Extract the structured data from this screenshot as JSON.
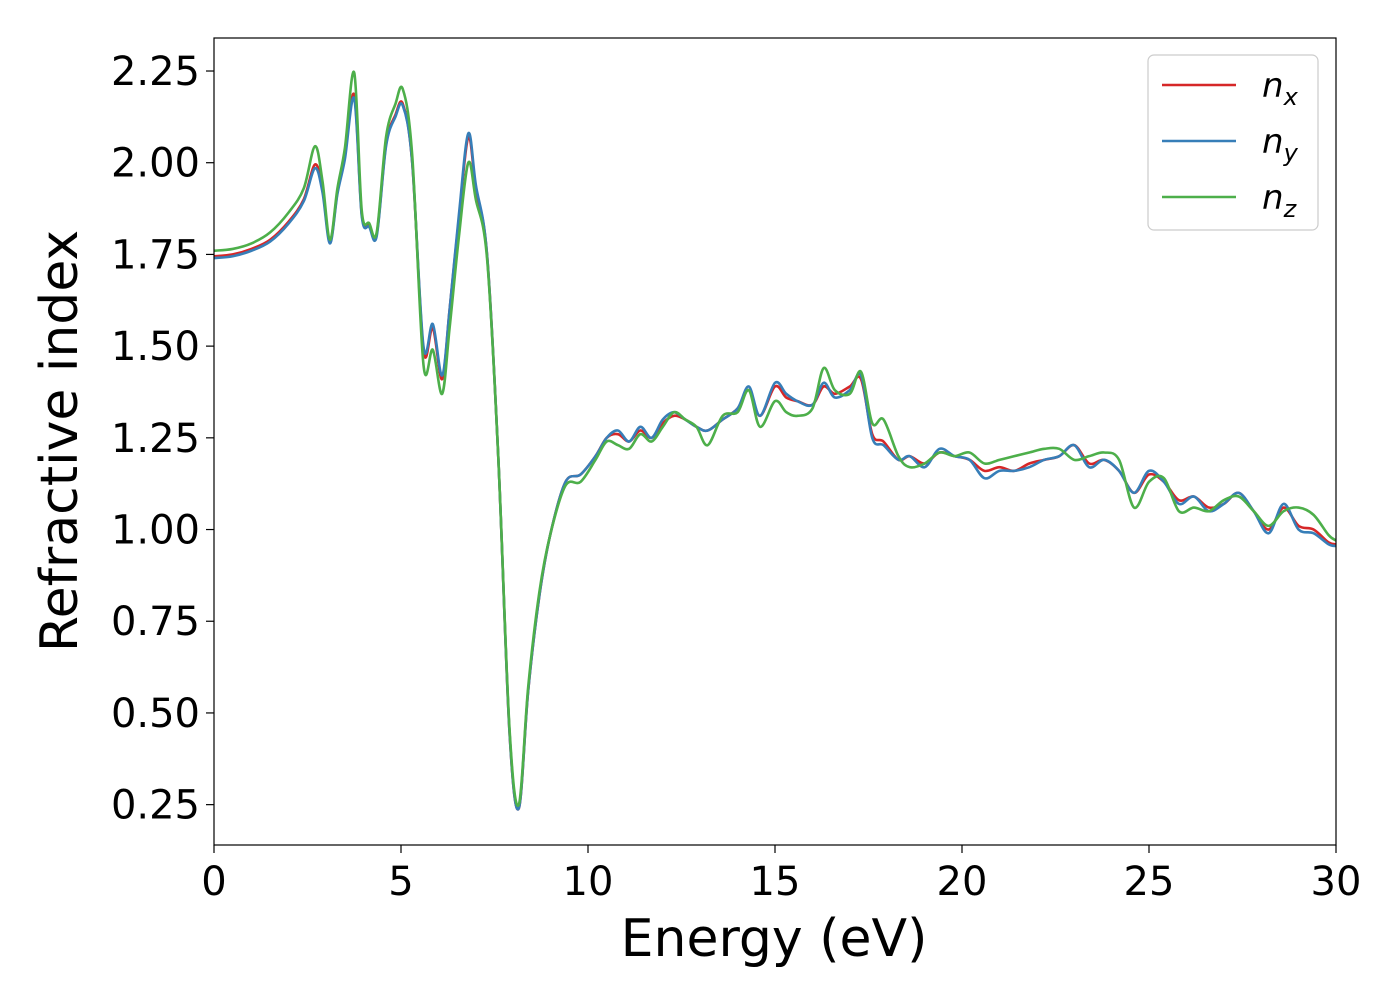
{
  "chart_data": {
    "type": "line",
    "title": "",
    "xlabel": "Energy (eV)",
    "ylabel": "Refractive index",
    "xlim": [
      0,
      30
    ],
    "ylim": [
      0.14,
      2.34
    ],
    "xticks": [
      0,
      5,
      10,
      15,
      20,
      25,
      30
    ],
    "xtick_labels": [
      "0",
      "5",
      "10",
      "15",
      "20",
      "25",
      "30"
    ],
    "yticks": [
      0.25,
      0.5,
      0.75,
      1.0,
      1.25,
      1.5,
      1.75,
      2.0,
      2.25
    ],
    "ytick_labels": [
      "0.25",
      "0.50",
      "0.75",
      "1.00",
      "1.25",
      "1.50",
      "1.75",
      "2.00",
      "2.25"
    ],
    "grid": false,
    "legend_position": "top-right",
    "series": [
      {
        "name": "n_x",
        "legend_base": "n",
        "legend_sub": "x",
        "color": "#d62728",
        "x": [
          0,
          0.5,
          1.0,
          1.5,
          2.0,
          2.4,
          2.7,
          2.9,
          3.1,
          3.3,
          3.5,
          3.75,
          3.95,
          4.15,
          4.35,
          4.6,
          4.85,
          5.05,
          5.3,
          5.6,
          5.85,
          6.1,
          6.3,
          6.55,
          6.8,
          7.0,
          7.3,
          7.6,
          7.9,
          8.15,
          8.4,
          8.7,
          9.0,
          9.4,
          9.8,
          10.2,
          10.5,
          10.8,
          11.1,
          11.4,
          11.7,
          12.0,
          12.3,
          12.6,
          12.9,
          13.2,
          13.6,
          14.0,
          14.3,
          14.6,
          15.0,
          15.3,
          15.6,
          16.0,
          16.3,
          16.6,
          17.0,
          17.3,
          17.6,
          17.9,
          18.3,
          18.6,
          19.0,
          19.4,
          19.8,
          20.2,
          20.6,
          21.0,
          21.4,
          21.8,
          22.2,
          22.6,
          23.0,
          23.4,
          23.8,
          24.2,
          24.6,
          25.0,
          25.4,
          25.8,
          26.2,
          26.6,
          27.0,
          27.4,
          27.8,
          28.2,
          28.6,
          29.0,
          29.4,
          29.8,
          30.0
        ],
        "values": [
          1.745,
          1.75,
          1.765,
          1.79,
          1.84,
          1.9,
          1.995,
          1.93,
          1.785,
          1.92,
          2.02,
          2.185,
          1.86,
          1.83,
          1.805,
          2.05,
          2.13,
          2.16,
          2.0,
          1.49,
          1.55,
          1.41,
          1.6,
          1.85,
          2.07,
          1.93,
          1.75,
          1.2,
          0.45,
          0.24,
          0.56,
          0.82,
          0.99,
          1.13,
          1.15,
          1.2,
          1.25,
          1.26,
          1.24,
          1.27,
          1.25,
          1.29,
          1.31,
          1.3,
          1.28,
          1.27,
          1.3,
          1.33,
          1.38,
          1.31,
          1.39,
          1.36,
          1.35,
          1.34,
          1.39,
          1.37,
          1.39,
          1.41,
          1.26,
          1.24,
          1.19,
          1.2,
          1.18,
          1.21,
          1.2,
          1.19,
          1.16,
          1.17,
          1.16,
          1.18,
          1.19,
          1.2,
          1.23,
          1.18,
          1.19,
          1.16,
          1.1,
          1.15,
          1.13,
          1.08,
          1.09,
          1.06,
          1.07,
          1.1,
          1.05,
          1.0,
          1.06,
          1.01,
          1.0,
          0.965,
          0.96
        ]
      },
      {
        "name": "n_y",
        "legend_base": "n",
        "legend_sub": "y",
        "color": "#377eb8",
        "x": [
          0,
          0.5,
          1.0,
          1.5,
          2.0,
          2.4,
          2.7,
          2.9,
          3.1,
          3.3,
          3.5,
          3.75,
          3.95,
          4.15,
          4.35,
          4.6,
          4.85,
          5.05,
          5.3,
          5.6,
          5.85,
          6.1,
          6.3,
          6.55,
          6.8,
          7.0,
          7.3,
          7.6,
          7.9,
          8.15,
          8.4,
          8.7,
          9.0,
          9.4,
          9.8,
          10.2,
          10.5,
          10.8,
          11.1,
          11.4,
          11.7,
          12.0,
          12.3,
          12.6,
          12.9,
          13.2,
          13.6,
          14.0,
          14.3,
          14.6,
          15.0,
          15.3,
          15.6,
          16.0,
          16.3,
          16.6,
          17.0,
          17.3,
          17.6,
          17.9,
          18.3,
          18.6,
          19.0,
          19.4,
          19.8,
          20.2,
          20.6,
          21.0,
          21.4,
          21.8,
          22.2,
          22.6,
          23.0,
          23.4,
          23.8,
          24.2,
          24.6,
          25.0,
          25.4,
          25.8,
          26.2,
          26.6,
          27.0,
          27.4,
          27.8,
          28.2,
          28.6,
          29.0,
          29.4,
          29.8,
          30.0
        ],
        "values": [
          1.74,
          1.745,
          1.76,
          1.785,
          1.835,
          1.895,
          1.985,
          1.92,
          1.78,
          1.915,
          2.01,
          2.175,
          1.855,
          1.825,
          1.8,
          2.045,
          2.125,
          2.155,
          2.0,
          1.5,
          1.56,
          1.42,
          1.6,
          1.86,
          2.08,
          1.94,
          1.75,
          1.2,
          0.45,
          0.24,
          0.56,
          0.82,
          0.99,
          1.13,
          1.15,
          1.2,
          1.25,
          1.27,
          1.24,
          1.28,
          1.25,
          1.3,
          1.32,
          1.3,
          1.28,
          1.27,
          1.3,
          1.33,
          1.39,
          1.31,
          1.4,
          1.37,
          1.35,
          1.34,
          1.4,
          1.36,
          1.38,
          1.42,
          1.25,
          1.23,
          1.19,
          1.2,
          1.17,
          1.22,
          1.2,
          1.19,
          1.14,
          1.16,
          1.16,
          1.17,
          1.19,
          1.2,
          1.23,
          1.17,
          1.19,
          1.16,
          1.1,
          1.16,
          1.13,
          1.07,
          1.09,
          1.05,
          1.07,
          1.1,
          1.05,
          0.99,
          1.07,
          1.0,
          0.99,
          0.96,
          0.955
        ]
      },
      {
        "name": "n_z",
        "legend_base": "n",
        "legend_sub": "z",
        "color": "#4daf4a",
        "x": [
          0,
          0.5,
          1.0,
          1.5,
          2.0,
          2.4,
          2.7,
          2.9,
          3.1,
          3.3,
          3.5,
          3.75,
          3.95,
          4.15,
          4.35,
          4.6,
          4.85,
          5.05,
          5.3,
          5.6,
          5.85,
          6.1,
          6.3,
          6.55,
          6.8,
          7.0,
          7.3,
          7.6,
          7.9,
          8.15,
          8.4,
          8.7,
          9.0,
          9.4,
          9.8,
          10.2,
          10.5,
          10.8,
          11.1,
          11.4,
          11.7,
          12.0,
          12.3,
          12.6,
          12.9,
          13.2,
          13.6,
          14.0,
          14.3,
          14.6,
          15.0,
          15.3,
          15.6,
          16.0,
          16.3,
          16.6,
          17.0,
          17.3,
          17.6,
          17.9,
          18.3,
          18.6,
          19.0,
          19.4,
          19.8,
          20.2,
          20.6,
          21.0,
          21.4,
          21.8,
          22.2,
          22.6,
          23.0,
          23.4,
          23.8,
          24.2,
          24.6,
          25.0,
          25.4,
          25.8,
          26.2,
          26.6,
          27.0,
          27.4,
          27.8,
          28.2,
          28.6,
          29.0,
          29.4,
          29.8,
          30.0
        ],
        "values": [
          1.76,
          1.765,
          1.78,
          1.81,
          1.865,
          1.93,
          2.045,
          1.95,
          1.79,
          1.93,
          2.04,
          2.245,
          1.87,
          1.835,
          1.81,
          2.07,
          2.16,
          2.2,
          2.02,
          1.45,
          1.49,
          1.37,
          1.55,
          1.8,
          2.0,
          1.9,
          1.74,
          1.2,
          0.46,
          0.25,
          0.57,
          0.83,
          0.99,
          1.12,
          1.13,
          1.19,
          1.24,
          1.23,
          1.22,
          1.26,
          1.24,
          1.28,
          1.32,
          1.3,
          1.28,
          1.23,
          1.31,
          1.32,
          1.38,
          1.28,
          1.35,
          1.32,
          1.31,
          1.33,
          1.44,
          1.38,
          1.37,
          1.43,
          1.29,
          1.3,
          1.2,
          1.17,
          1.18,
          1.21,
          1.2,
          1.21,
          1.18,
          1.19,
          1.2,
          1.21,
          1.22,
          1.22,
          1.19,
          1.2,
          1.21,
          1.19,
          1.06,
          1.13,
          1.14,
          1.05,
          1.06,
          1.05,
          1.08,
          1.09,
          1.05,
          1.01,
          1.05,
          1.06,
          1.04,
          0.985,
          0.97
        ]
      }
    ]
  }
}
